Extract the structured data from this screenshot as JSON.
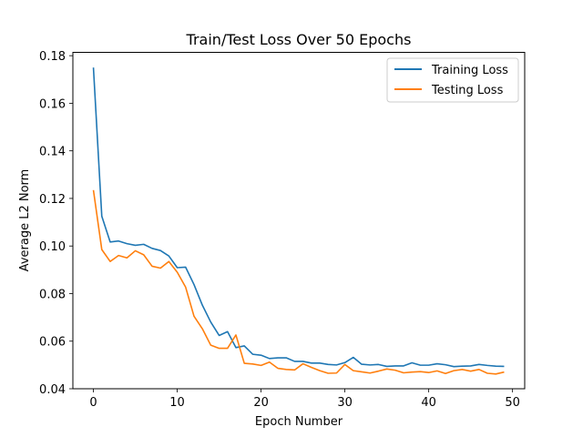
{
  "chart_data": {
    "type": "line",
    "title": "Train/Test Loss Over 50 Epochs",
    "xlabel": "Epoch Number",
    "ylabel": "Average L2 Norm",
    "xlim": [
      -2.45,
      51.45
    ],
    "ylim": [
      0.04,
      0.1814
    ],
    "xticks": [
      0,
      10,
      20,
      30,
      40,
      50
    ],
    "xtick_labels": [
      "0",
      "10",
      "20",
      "30",
      "40",
      "50"
    ],
    "yticks": [
      0.04,
      0.06,
      0.08,
      0.1,
      0.12,
      0.14,
      0.16,
      0.18
    ],
    "ytick_labels": [
      "0.04",
      "0.06",
      "0.08",
      "0.10",
      "0.12",
      "0.14",
      "0.16",
      "0.18"
    ],
    "grid": false,
    "legend_position": "top-right",
    "x": [
      0,
      1,
      2,
      3,
      4,
      5,
      6,
      7,
      8,
      9,
      10,
      11,
      12,
      13,
      14,
      15,
      16,
      17,
      18,
      19,
      20,
      21,
      22,
      23,
      24,
      25,
      26,
      27,
      28,
      29,
      30,
      31,
      32,
      33,
      34,
      35,
      36,
      37,
      38,
      39,
      40,
      41,
      42,
      43,
      44,
      45,
      46,
      47,
      48,
      49
    ],
    "series": [
      {
        "name": "Training Loss",
        "color": "#1f77b4",
        "values": [
          0.175,
          0.1125,
          0.1017,
          0.1021,
          0.101,
          0.1003,
          0.1007,
          0.099,
          0.0981,
          0.0958,
          0.0909,
          0.0911,
          0.0838,
          0.0751,
          0.068,
          0.0624,
          0.064,
          0.0573,
          0.058,
          0.0545,
          0.0541,
          0.0527,
          0.053,
          0.053,
          0.0515,
          0.0515,
          0.0508,
          0.0508,
          0.0502,
          0.05,
          0.051,
          0.0532,
          0.0503,
          0.05,
          0.0502,
          0.0494,
          0.0496,
          0.0496,
          0.0509,
          0.0499,
          0.0499,
          0.0505,
          0.0501,
          0.0493,
          0.0495,
          0.0496,
          0.0502,
          0.0498,
          0.0495,
          0.0494
        ]
      },
      {
        "name": "Testing Loss",
        "color": "#ff7f0e",
        "values": [
          0.1235,
          0.0985,
          0.0935,
          0.096,
          0.095,
          0.098,
          0.0963,
          0.0915,
          0.0907,
          0.0935,
          0.089,
          0.0827,
          0.0705,
          0.0652,
          0.0583,
          0.057,
          0.057,
          0.0626,
          0.0507,
          0.0504,
          0.0498,
          0.0512,
          0.0486,
          0.0481,
          0.0479,
          0.0505,
          0.049,
          0.0476,
          0.0465,
          0.0466,
          0.0502,
          0.0476,
          0.0471,
          0.0466,
          0.0474,
          0.0483,
          0.0478,
          0.0467,
          0.047,
          0.0472,
          0.0468,
          0.0475,
          0.0464,
          0.0476,
          0.0481,
          0.0474,
          0.0481,
          0.0465,
          0.0462,
          0.047
        ]
      }
    ]
  }
}
